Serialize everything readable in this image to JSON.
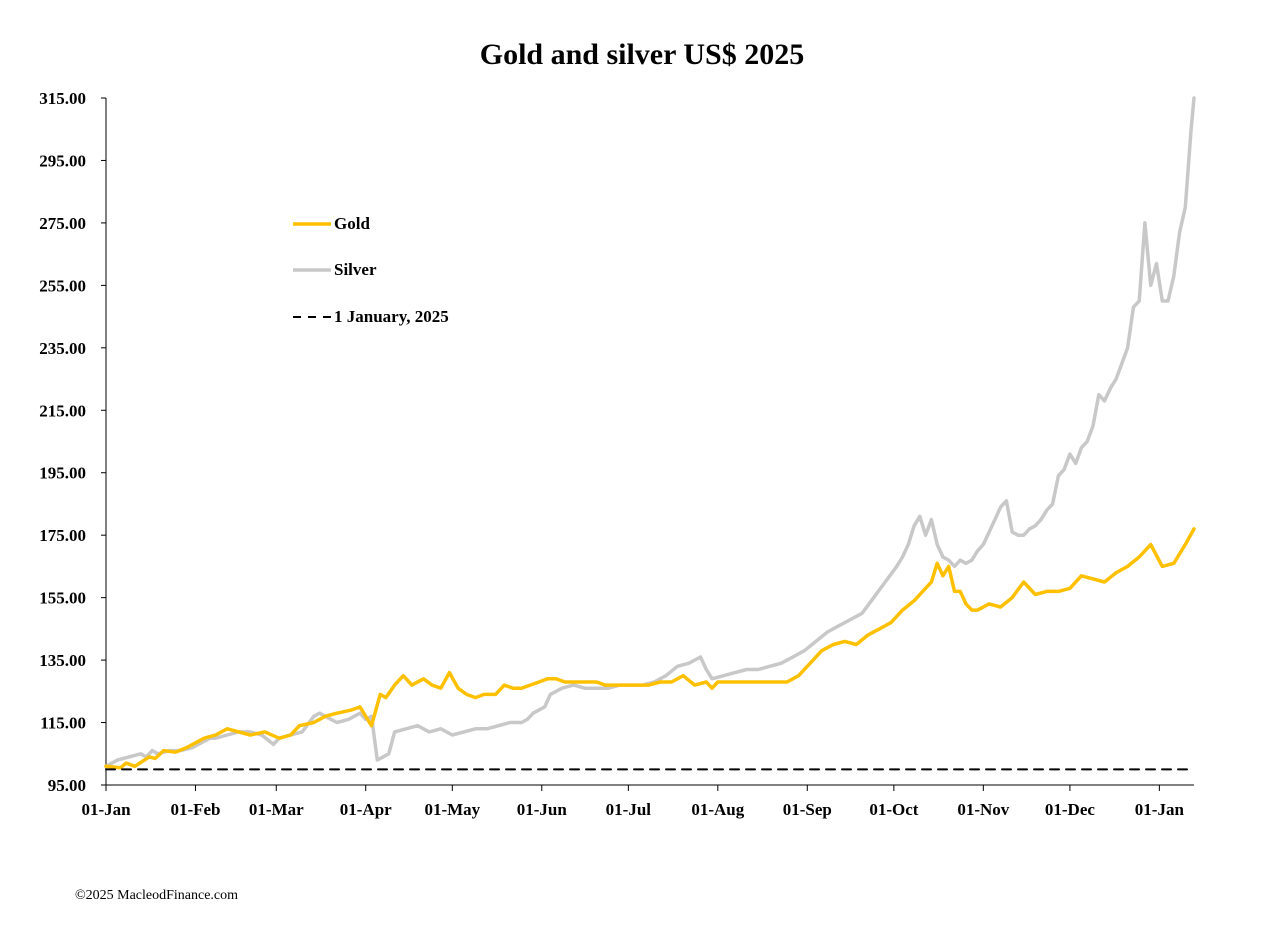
{
  "chart_data": {
    "type": "line",
    "title": "Gold and silver  US$ 2025",
    "xlabel": "",
    "ylabel": "",
    "ylim": [
      95,
      315
    ],
    "yticks": [
      "95.00",
      "115.00",
      "135.00",
      "155.00",
      "175.00",
      "195.00",
      "215.00",
      "235.00",
      "255.00",
      "275.00",
      "295.00",
      "315.00"
    ],
    "xlim": [
      0,
      377
    ],
    "xticks": [
      {
        "label": "01-Jan",
        "day": 0
      },
      {
        "label": "01-Feb",
        "day": 31
      },
      {
        "label": "01-Mar",
        "day": 59
      },
      {
        "label": "01-Apr",
        "day": 90
      },
      {
        "label": "01-May",
        "day": 120
      },
      {
        "label": "01-Jun",
        "day": 151
      },
      {
        "label": "01-Jul",
        "day": 181
      },
      {
        "label": "01-Aug",
        "day": 212
      },
      {
        "label": "01-Sep",
        "day": 243
      },
      {
        "label": "01-Oct",
        "day": 273
      },
      {
        "label": "01-Nov",
        "day": 304
      },
      {
        "label": "01-Dec",
        "day": 334
      },
      {
        "label": "01-Jan",
        "day": 365
      }
    ],
    "legend_position": "upper-left",
    "series": [
      {
        "name": "Gold",
        "color": "#FFC000",
        "style": "solid",
        "x": [
          0,
          5,
          7,
          10,
          15,
          17,
          20,
          24,
          28,
          30,
          34,
          38,
          42,
          46,
          50,
          55,
          60,
          64,
          67,
          72,
          76,
          80,
          85,
          88,
          90,
          92,
          95,
          97,
          100,
          103,
          106,
          110,
          113,
          116,
          119,
          122,
          125,
          128,
          131,
          135,
          138,
          141,
          144,
          147,
          150,
          153,
          156,
          159,
          163,
          167,
          170,
          173,
          176,
          180,
          184,
          188,
          192,
          196,
          200,
          204,
          208,
          210,
          212,
          214,
          218,
          220,
          224,
          228,
          232,
          236,
          240,
          244,
          248,
          252,
          256,
          260,
          264,
          268,
          272,
          276,
          280,
          283,
          286,
          288,
          290,
          292,
          294,
          296,
          298,
          300,
          302,
          306,
          310,
          314,
          318,
          322,
          326,
          330,
          334,
          338,
          342,
          346,
          350,
          352,
          354,
          358,
          362,
          366,
          370,
          374,
          377
        ],
        "values": [
          101,
          100.5,
          102,
          101,
          104,
          103.5,
          106,
          105.5,
          107,
          108,
          110,
          111,
          113,
          112,
          111,
          112,
          110,
          111,
          114,
          115,
          117,
          118,
          119,
          120,
          117,
          114,
          124,
          123,
          127,
          130,
          127,
          129,
          127,
          126,
          131,
          126,
          124,
          123,
          124,
          124,
          127,
          126,
          126,
          127,
          128,
          129,
          129,
          128,
          128,
          128,
          128,
          127,
          127,
          127,
          127,
          127,
          128,
          128,
          130,
          127,
          128,
          126,
          128,
          128,
          128,
          128,
          128,
          128,
          128,
          128,
          130,
          134,
          138,
          140,
          141,
          140,
          143,
          145,
          147,
          151,
          154,
          157,
          160,
          166,
          162,
          165,
          157,
          157,
          153,
          151,
          151,
          153,
          152,
          155,
          160,
          156,
          157,
          157,
          158,
          162,
          161,
          160,
          163,
          164,
          165,
          168,
          172,
          165,
          166,
          172,
          177
        ]
      },
      {
        "name": "Silver",
        "color": "#C8C8C8",
        "style": "solid",
        "x": [
          0,
          4,
          8,
          12,
          14,
          16,
          18,
          22,
          26,
          30,
          34,
          36,
          38,
          42,
          46,
          50,
          54,
          58,
          60,
          64,
          68,
          72,
          74,
          76,
          80,
          84,
          88,
          90,
          92,
          94,
          96,
          98,
          100,
          104,
          108,
          112,
          116,
          120,
          124,
          128,
          132,
          136,
          140,
          144,
          146,
          148,
          150,
          152,
          154,
          158,
          162,
          166,
          170,
          174,
          178,
          182,
          186,
          190,
          194,
          198,
          202,
          204,
          206,
          208,
          210,
          214,
          218,
          222,
          226,
          230,
          234,
          238,
          242,
          246,
          250,
          254,
          258,
          262,
          266,
          270,
          274,
          276,
          278,
          280,
          282,
          284,
          286,
          288,
          290,
          292,
          294,
          296,
          298,
          300,
          302,
          304,
          306,
          308,
          310,
          312,
          314,
          316,
          318,
          320,
          322,
          324,
          326,
          328,
          330,
          332,
          334,
          336,
          338,
          340,
          342,
          344,
          346,
          348,
          350,
          352,
          354,
          356,
          358,
          360,
          362,
          364,
          366,
          368,
          370,
          372,
          374,
          376,
          377
        ],
        "values": [
          101,
          103,
          104,
          105,
          104,
          106,
          105,
          106,
          106,
          107,
          109,
          110,
          110,
          111,
          112,
          112,
          111,
          108,
          110,
          111,
          112,
          117,
          118,
          117,
          115,
          116,
          118,
          116,
          117,
          103,
          104,
          105,
          112,
          113,
          114,
          112,
          113,
          111,
          112,
          113,
          113,
          114,
          115,
          115,
          116,
          118,
          119,
          120,
          124,
          126,
          127,
          126,
          126,
          126,
          127,
          127,
          127,
          128,
          130,
          133,
          134,
          135,
          136,
          132,
          129,
          130,
          131,
          132,
          132,
          133,
          134,
          136,
          138,
          141,
          144,
          146,
          148,
          150,
          155,
          160,
          165,
          168,
          172,
          178,
          181,
          175,
          180,
          172,
          168,
          167,
          165,
          167,
          166,
          167,
          170,
          172,
          176,
          180,
          184,
          186,
          176,
          175,
          175,
          177,
          178,
          180,
          183,
          185,
          194,
          196,
          201,
          198,
          203,
          205,
          210,
          220,
          218,
          222,
          225,
          230,
          235,
          248,
          250,
          275,
          255,
          262,
          250,
          250,
          258,
          272,
          280,
          305,
          315
        ]
      },
      {
        "name": "1 January, 2025",
        "color": "#000000",
        "style": "dashed",
        "x": [
          0,
          377
        ],
        "values": [
          100,
          100
        ]
      }
    ]
  },
  "footer": "©2025 MacleodFinance.com"
}
